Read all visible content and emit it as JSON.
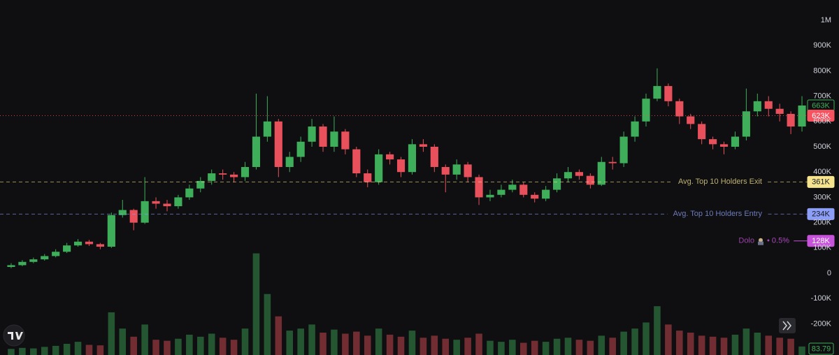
{
  "chart_data": {
    "type": "candlestick",
    "up_color": "#3fae5a",
    "down_color": "#e8515b",
    "ylim": [
      -323000,
      1080000
    ],
    "yticks": [
      {
        "value": 1000000,
        "label": "1M"
      },
      {
        "value": 900000,
        "label": "900K"
      },
      {
        "value": 800000,
        "label": "800K"
      },
      {
        "value": 700000,
        "label": "700K"
      },
      {
        "value": 600000,
        "label": "600K"
      },
      {
        "value": 500000,
        "label": "500K"
      },
      {
        "value": 400000,
        "label": "400K"
      },
      {
        "value": 300000,
        "label": "300K"
      },
      {
        "value": 200000,
        "label": "200K"
      },
      {
        "value": 100000,
        "label": "100K"
      },
      0,
      {
        "value": -100000,
        "label": "-100K"
      },
      {
        "value": -200000,
        "label": "-200K"
      }
    ],
    "ohlc": {
      "open": [
        25000,
        32000,
        45000,
        55000,
        68000,
        85000,
        110000,
        125000,
        115000,
        105000,
        230000,
        250000,
        200000,
        285000,
        275000,
        265000,
        300000,
        335000,
        365000,
        395000,
        390000,
        380000,
        420000,
        540000,
        600000,
        420000,
        460000,
        520000,
        580000,
        500000,
        560000,
        490000,
        395000,
        360000,
        470000,
        450000,
        400000,
        510000,
        500000,
        420000,
        390000,
        430000,
        380000,
        300000,
        310000,
        330000,
        350000,
        310000,
        295000,
        330000,
        375000,
        400000,
        385000,
        350000,
        440000,
        435000,
        540000,
        600000,
        690000,
        740000,
        680000,
        620000,
        590000,
        530000,
        510000,
        500000,
        540000,
        640000,
        680000,
        650000,
        630000,
        580000
      ],
      "high": [
        40000,
        52000,
        62000,
        76000,
        95000,
        120000,
        135000,
        132000,
        120000,
        240000,
        290000,
        255000,
        380000,
        300000,
        290000,
        310000,
        350000,
        380000,
        410000,
        410000,
        400000,
        440000,
        710000,
        700000,
        610000,
        480000,
        540000,
        610000,
        590000,
        620000,
        570000,
        500000,
        410000,
        490000,
        480000,
        460000,
        530000,
        530000,
        510000,
        430000,
        450000,
        440000,
        390000,
        330000,
        350000,
        370000,
        360000,
        320000,
        345000,
        395000,
        420000,
        410000,
        395000,
        460000,
        460000,
        560000,
        620000,
        710000,
        810000,
        750000,
        690000,
        630000,
        600000,
        540000,
        520000,
        560000,
        730000,
        710000,
        700000,
        670000,
        640000,
        700000
      ],
      "low": [
        20000,
        28000,
        40000,
        50000,
        63000,
        80000,
        105000,
        108000,
        95000,
        100000,
        220000,
        170000,
        195000,
        255000,
        245000,
        255000,
        290000,
        320000,
        350000,
        370000,
        360000,
        365000,
        410000,
        520000,
        380000,
        400000,
        440000,
        500000,
        480000,
        480000,
        470000,
        380000,
        340000,
        350000,
        430000,
        380000,
        390000,
        480000,
        400000,
        320000,
        370000,
        360000,
        270000,
        285000,
        300000,
        320000,
        300000,
        280000,
        285000,
        320000,
        360000,
        370000,
        335000,
        345000,
        410000,
        420000,
        520000,
        580000,
        680000,
        660000,
        590000,
        570000,
        510000,
        490000,
        470000,
        490000,
        525000,
        620000,
        620000,
        600000,
        550000,
        560000
      ],
      "close": [
        32000,
        45000,
        55000,
        68000,
        85000,
        110000,
        125000,
        115000,
        105000,
        230000,
        250000,
        200000,
        285000,
        275000,
        265000,
        300000,
        335000,
        365000,
        395000,
        390000,
        380000,
        420000,
        540000,
        600000,
        420000,
        460000,
        520000,
        580000,
        500000,
        560000,
        490000,
        395000,
        360000,
        470000,
        450000,
        400000,
        510000,
        500000,
        420000,
        390000,
        430000,
        380000,
        300000,
        310000,
        330000,
        350000,
        310000,
        295000,
        330000,
        375000,
        400000,
        385000,
        350000,
        440000,
        435000,
        540000,
        600000,
        690000,
        740000,
        680000,
        620000,
        590000,
        530000,
        510000,
        500000,
        540000,
        640000,
        680000,
        650000,
        630000,
        580000,
        663000
      ]
    },
    "volume": {
      "lim": [
        0,
        1100
      ],
      "values": [
        60,
        70,
        65,
        80,
        90,
        110,
        130,
        100,
        95,
        420,
        260,
        180,
        300,
        150,
        140,
        160,
        200,
        180,
        210,
        170,
        150,
        260,
        1000,
        600,
        380,
        240,
        260,
        300,
        220,
        250,
        210,
        230,
        190,
        260,
        200,
        180,
        240,
        170,
        190,
        160,
        150,
        170,
        210,
        140,
        130,
        150,
        120,
        140,
        130,
        160,
        170,
        150,
        140,
        190,
        170,
        230,
        260,
        320,
        480,
        300,
        240,
        220,
        190,
        180,
        170,
        200,
        260,
        220,
        190,
        170,
        160,
        83.79
      ]
    },
    "price_lines": [
      {
        "value": 663000,
        "label": "663K",
        "color": "#3fae5a",
        "style": "none"
      },
      {
        "value": 623000,
        "label": "623K",
        "color": "#f7525f",
        "style": "dotted"
      },
      {
        "name": "Avg. Top 10 Holders Exit",
        "value": 361000,
        "label": "361K",
        "color": "#f5e38e",
        "style": "dashed"
      },
      {
        "name": "Avg. Top 10 Holders Entry",
        "value": 234000,
        "label": "234K",
        "color": "#8c9ef5",
        "style": "dashed"
      },
      {
        "name": "Dolo",
        "detail": "• 0.5%",
        "value": 128000,
        "label": "128K",
        "color": "#c653d9",
        "style": "solid"
      }
    ]
  }
}
